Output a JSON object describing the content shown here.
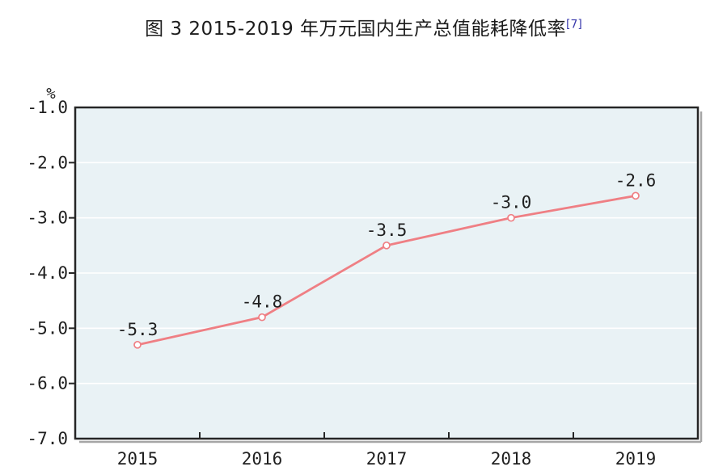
{
  "title": {
    "text": "图 3  2015-2019 年万元国内生产总值能耗降低率",
    "footnote_marker": "[7]"
  },
  "chart_data": {
    "type": "line",
    "title": "图 3 2015-2019 年万元国内生产总值能耗降低率 [7]",
    "categories": [
      "2015",
      "2016",
      "2017",
      "2018",
      "2019"
    ],
    "values": [
      -5.3,
      -4.8,
      -3.5,
      -3.0,
      -2.6
    ],
    "data_labels": [
      "-5.3",
      "-4.8",
      "-3.5",
      "-3.0",
      "-2.6"
    ],
    "xlabel": "",
    "ylabel": "%",
    "ylim": [
      -7.0,
      -1.0
    ],
    "y_tick_values": [
      -1.0,
      -2.0,
      -3.0,
      -4.0,
      -5.0,
      -6.0,
      -7.0
    ],
    "y_tick_labels": [
      "-1.0",
      "-2.0",
      "-3.0",
      "-4.0",
      "-5.0",
      "-6.0",
      "-7.0"
    ],
    "grid": true,
    "legend": "none",
    "marker": "open-circle",
    "colors": {
      "line": "#ef7f84",
      "marker_fill": "#ffffff",
      "plot_background": "#e9f2f5",
      "gridline": "#ffffff",
      "axis_border": "#262626",
      "shadow": "#a6a6a6",
      "text": "#1f1f1f",
      "footnote": "#3b3bad"
    }
  }
}
